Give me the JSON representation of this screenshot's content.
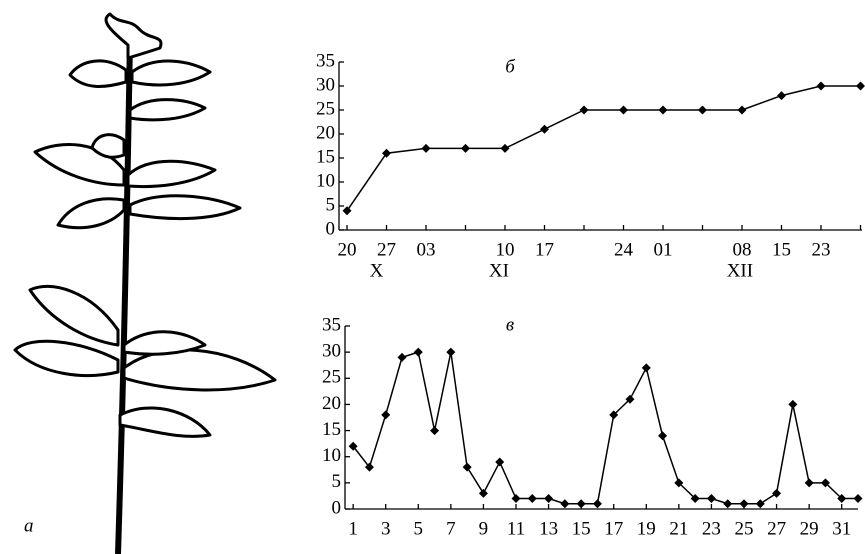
{
  "chart_data": [
    {
      "type": "line",
      "title": "б",
      "categories": [
        "20",
        "27",
        "03",
        null,
        "10",
        "17",
        null,
        "24",
        "01",
        null,
        "08",
        "15",
        "23",
        null
      ],
      "x_group_labels": [
        "X",
        "XI",
        "XII"
      ],
      "values": [
        4,
        16,
        17,
        17,
        17,
        21,
        25,
        25,
        25,
        25,
        25,
        28,
        30,
        30
      ],
      "color": "#000000",
      "ylim": [
        0,
        35
      ],
      "yticks": [
        0,
        5,
        10,
        15,
        20,
        25,
        30,
        35
      ]
    },
    {
      "type": "line",
      "title": "в",
      "x": [
        1,
        2,
        3,
        4,
        5,
        6,
        7,
        8,
        9,
        10,
        11,
        12,
        13,
        14,
        15,
        16,
        17,
        18,
        19,
        20,
        21,
        22,
        23,
        24,
        25,
        26,
        27,
        28,
        29,
        30,
        31,
        32
      ],
      "values": [
        12,
        8,
        18,
        29,
        30,
        15,
        30,
        8,
        3,
        9,
        2,
        2,
        2,
        1,
        1,
        1,
        18,
        21,
        27,
        14,
        5,
        2,
        2,
        1,
        1,
        1,
        3,
        20,
        5,
        5,
        2,
        2
      ],
      "color": "#000000",
      "xlim": [
        0.5,
        32
      ],
      "xticks": [
        1,
        3,
        5,
        7,
        9,
        11,
        13,
        15,
        17,
        19,
        21,
        23,
        25,
        27,
        29,
        31
      ],
      "ylim": [
        0,
        35
      ],
      "yticks": [
        0,
        5,
        10,
        15,
        20,
        25,
        30,
        35
      ]
    }
  ],
  "panel_label": "а"
}
